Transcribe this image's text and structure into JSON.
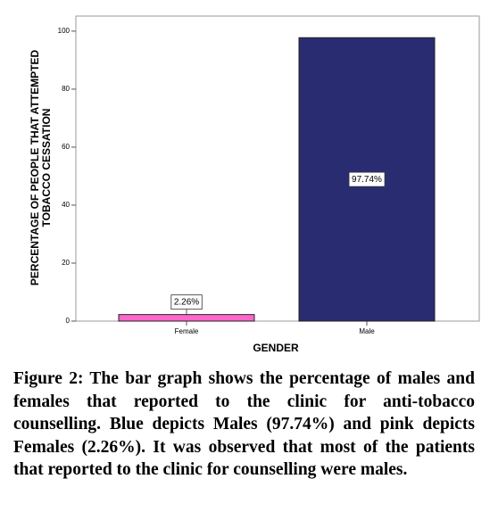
{
  "chart_data": {
    "type": "bar",
    "x_label": "GENDER",
    "y_label": [
      "PERCENTAGE OF PEOPLE THAT ATTEMPTED",
      "TOBACCO CESSATION"
    ],
    "categories": [
      "Female",
      "Male"
    ],
    "values": [
      2.26,
      97.74
    ],
    "value_labels": [
      "2.26%",
      "97.74%"
    ],
    "colors": [
      "#ff66cc",
      "#2a2c72"
    ],
    "ylim": [
      0,
      105.2
    ],
    "yticks": [
      0,
      20,
      40,
      60,
      80,
      100
    ],
    "grid": false
  },
  "caption": "Figure 2: The bar graph shows the percentage of males and females that reported to the clinic for anti-tobacco counselling. Blue depicts Males (97.74%) and pink depicts Females (2.26%). It was observed that most of the patients that reported to the clinic for counselling were males."
}
